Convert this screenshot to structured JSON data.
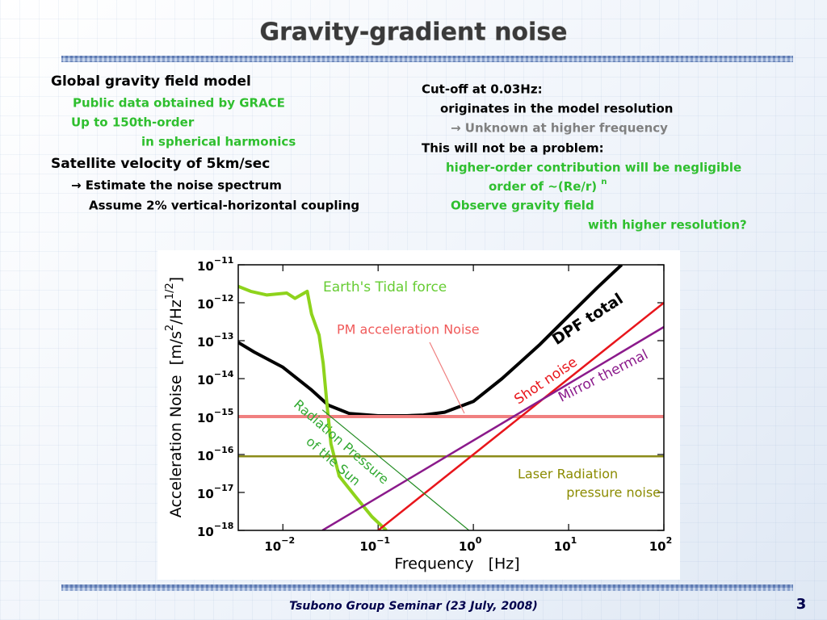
{
  "title": "Gravity-gradient noise",
  "left_block": [
    "Global gravity field model",
    "Public data obtained by GRACE",
    "Up to 150th-order",
    "in spherical harmonics",
    "Satellite velocity of 5km/sec",
    "→ Estimate the noise spectrum",
    "Assume 2% vertical-horizontal coupling"
  ],
  "right_block": [
    "Cut-off at 0.03Hz:",
    "originates in the model resolution",
    "→ Unknown at higher frequency",
    "This will not be a problem:",
    "higher-order contribution will be negligible",
    {
      "text": "order of ~(Re/r) ",
      "sup": "n"
    },
    "Observe gravity field",
    "with higher resolution?"
  ],
  "footer": "Tsubono Group Seminar (23 July, 2008)",
  "page_number": "3",
  "chart_data": {
    "type": "line",
    "xlabel": "Frequency   [Hz]",
    "ylabel": [
      "Acceleration Noise  [m/s",
      "2",
      "/Hz",
      "1/2",
      "]"
    ],
    "xscale": "log",
    "yscale": "log",
    "xlim": [
      0.0034,
      100
    ],
    "ylim": [
      1e-18,
      1e-11
    ],
    "xticks": [
      {
        "value": 0.01,
        "label": "10",
        "exponent": "−2"
      },
      {
        "value": 0.1,
        "label": "10",
        "exponent": "−1"
      },
      {
        "value": 1,
        "label": "10",
        "exponent": "0"
      },
      {
        "value": 10,
        "label": "10",
        "exponent": "1"
      },
      {
        "value": 100,
        "label": "10",
        "exponent": "2"
      }
    ],
    "yticks": [
      {
        "value": 1e-11,
        "label": "10",
        "exponent": "−11"
      },
      {
        "value": 1e-12,
        "label": "10",
        "exponent": "−12"
      },
      {
        "value": 1e-13,
        "label": "10",
        "exponent": "−13"
      },
      {
        "value": 1e-14,
        "label": "10",
        "exponent": "−14"
      },
      {
        "value": 1e-15,
        "label": "10",
        "exponent": "−15"
      },
      {
        "value": 1e-16,
        "label": "10",
        "exponent": "−16"
      },
      {
        "value": 1e-17,
        "label": "10",
        "exponent": "−17"
      },
      {
        "value": 1e-18,
        "label": "10",
        "exponent": "−18"
      }
    ],
    "grid": false,
    "series": [
      {
        "name": "DPF total",
        "color": "#000000",
        "label_color": "#000000",
        "x": [
          0.0034,
          0.005,
          0.01,
          0.02,
          0.03,
          0.05,
          0.1,
          0.2,
          0.3,
          0.5,
          1,
          2,
          3,
          5,
          10,
          20,
          36
        ],
        "values": [
          9e-14,
          5e-14,
          2e-14,
          5e-15,
          2e-15,
          1.2e-15,
          1.05e-15,
          1.05e-15,
          1.1e-15,
          1.3e-15,
          2.5e-15,
          1e-14,
          2.5e-14,
          8e-14,
          4.5e-13,
          2.5e-12,
          1e-11
        ]
      },
      {
        "name": "Earth's Tidal force",
        "color": "#8ed31c",
        "label_color": "#66cc33",
        "x": [
          0.0034,
          0.0046,
          0.0068,
          0.011,
          0.0134,
          0.018,
          0.02,
          0.024,
          0.0265,
          0.029,
          0.032,
          0.039,
          0.058,
          0.086,
          0.122
        ],
        "values": [
          2.7e-12,
          2e-12,
          1.6e-12,
          1.8e-12,
          1.3e-12,
          2e-12,
          5e-13,
          1.4e-13,
          2.5e-14,
          2.2e-15,
          1.9e-16,
          2.7e-17,
          7.7e-18,
          2.3e-18,
          1e-18
        ]
      },
      {
        "name": "PM acceleration Noise",
        "color": "#f08080",
        "label_color": "#f05a5a",
        "x": [
          0.0034,
          100
        ],
        "values": [
          1e-15,
          1e-15
        ]
      },
      {
        "name": [
          "Laser Radiation",
          "pressure noise"
        ],
        "color": "#8b8b1a",
        "label_color": "#8b8b00",
        "x": [
          0.0034,
          100
        ],
        "values": [
          9e-17,
          9e-17
        ]
      },
      {
        "name": "Shot noise",
        "color": "#e8151b",
        "label_color": "#e8151b",
        "x": [
          0.1,
          100
        ],
        "values": [
          1e-18,
          1e-12
        ]
      },
      {
        "name": "Mirror thermal",
        "color": "#8b1a8b",
        "label_color": "#8b1a8b",
        "x": [
          0.026,
          100
        ],
        "values": [
          1e-18,
          2.3e-13
        ]
      },
      {
        "name": [
          "Radiation Pressure",
          "of the Sun"
        ],
        "color": "#228b22",
        "label_color": "#33aa33",
        "x": [
          0.026,
          0.9
        ],
        "values": [
          1.5e-15,
          1e-18
        ]
      }
    ]
  }
}
